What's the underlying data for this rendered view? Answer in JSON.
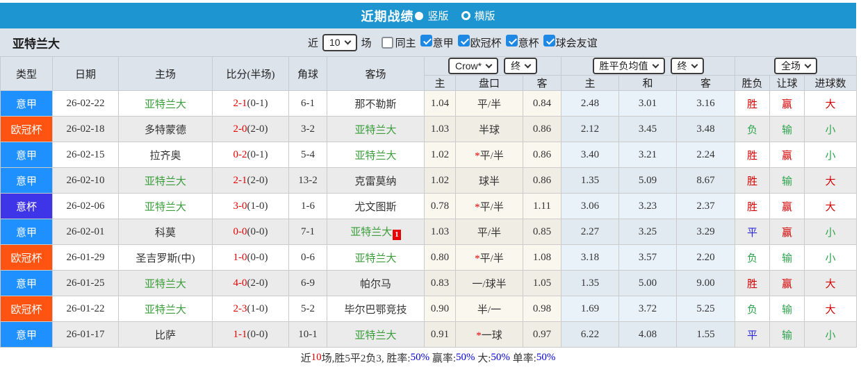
{
  "title_bar": {
    "title": "近期战绩",
    "vertical_label": "竖版",
    "horizontal_label": "横版",
    "bar_color": "#1C95D0"
  },
  "filter_bar": {
    "team": "亚特兰大",
    "near_label": "近",
    "matches_value": "10",
    "matches_label": "场",
    "same_home_label": "同主",
    "league_filters": [
      "意甲",
      "欧冠杯",
      "意杯",
      "球会友谊"
    ],
    "checkbox_color": "#1E88E5"
  },
  "table": {
    "headers": {
      "type": "类型",
      "date": "日期",
      "home": "主场",
      "score": "比分(半场)",
      "corner": "角球",
      "away": "客场"
    },
    "dropdowns": {
      "odds_source": "Crow*",
      "odds_time1": "终",
      "avg_label": "胜平负均值",
      "odds_time2": "终",
      "scope": "全场"
    },
    "sub_headers": [
      "主",
      "盘口",
      "客",
      "主",
      "和",
      "客",
      "胜负",
      "让球",
      "进球数"
    ],
    "league_colors": {
      "意甲": "#1E90FF",
      "欧冠杯": "#FF5411",
      "意杯": "#3F35E8"
    },
    "focus_team_color": "#3A9D3A",
    "rows": [
      {
        "league": "意甲",
        "date": "26-02-22",
        "home": "亚特兰大",
        "home_is_focus": true,
        "score": "2-1",
        "half": "(0-1)",
        "corner": "6-1",
        "away": "那不勒斯",
        "away_is_focus": false,
        "away_card": "",
        "odds_home": "1.04",
        "handicap": "平/半",
        "handicap_star": false,
        "odds_away": "0.84",
        "avg_home": "2.48",
        "avg_draw": "3.01",
        "avg_away": "3.16",
        "result": {
          "t": "胜",
          "c": "red"
        },
        "spread": {
          "t": "赢",
          "c": "red"
        },
        "goals": {
          "t": "大",
          "c": "red"
        }
      },
      {
        "league": "欧冠杯",
        "date": "26-02-18",
        "home": "多特蒙德",
        "home_is_focus": false,
        "score": "2-0",
        "half": "(2-0)",
        "corner": "3-2",
        "away": "亚特兰大",
        "away_is_focus": true,
        "away_card": "",
        "odds_home": "1.03",
        "handicap": "半球",
        "handicap_star": false,
        "odds_away": "0.86",
        "avg_home": "2.12",
        "avg_draw": "3.45",
        "avg_away": "3.48",
        "result": {
          "t": "负",
          "c": "green"
        },
        "spread": {
          "t": "输",
          "c": "green"
        },
        "goals": {
          "t": "小",
          "c": "green"
        }
      },
      {
        "league": "意甲",
        "date": "26-02-15",
        "home": "拉齐奥",
        "home_is_focus": false,
        "score": "0-2",
        "half": "(0-1)",
        "corner": "5-4",
        "away": "亚特兰大",
        "away_is_focus": true,
        "away_card": "",
        "odds_home": "1.02",
        "handicap": "平/半",
        "handicap_star": true,
        "odds_away": "0.86",
        "avg_home": "3.40",
        "avg_draw": "3.21",
        "avg_away": "2.24",
        "result": {
          "t": "胜",
          "c": "red"
        },
        "spread": {
          "t": "赢",
          "c": "red"
        },
        "goals": {
          "t": "小",
          "c": "green"
        }
      },
      {
        "league": "意甲",
        "date": "26-02-10",
        "home": "亚特兰大",
        "home_is_focus": true,
        "score": "2-1",
        "half": "(2-0)",
        "corner": "13-2",
        "away": "克雷莫纳",
        "away_is_focus": false,
        "away_card": "",
        "odds_home": "1.02",
        "handicap": "球半",
        "handicap_star": false,
        "odds_away": "0.86",
        "avg_home": "1.35",
        "avg_draw": "5.09",
        "avg_away": "8.67",
        "result": {
          "t": "胜",
          "c": "red"
        },
        "spread": {
          "t": "输",
          "c": "green"
        },
        "goals": {
          "t": "大",
          "c": "red"
        }
      },
      {
        "league": "意杯",
        "date": "26-02-06",
        "home": "亚特兰大",
        "home_is_focus": true,
        "score": "3-0",
        "half": "(1-0)",
        "corner": "1-6",
        "away": "尤文图斯",
        "away_is_focus": false,
        "away_card": "",
        "odds_home": "0.78",
        "handicap": "平/半",
        "handicap_star": true,
        "odds_away": "1.11",
        "avg_home": "3.06",
        "avg_draw": "3.23",
        "avg_away": "2.37",
        "result": {
          "t": "胜",
          "c": "red"
        },
        "spread": {
          "t": "赢",
          "c": "red"
        },
        "goals": {
          "t": "大",
          "c": "red"
        }
      },
      {
        "league": "意甲",
        "date": "26-02-01",
        "home": "科莫",
        "home_is_focus": false,
        "score": "0-0",
        "half": "(0-0)",
        "corner": "7-1",
        "away": "亚特兰大",
        "away_is_focus": true,
        "away_card": "1",
        "odds_home": "1.03",
        "handicap": "平/半",
        "handicap_star": false,
        "odds_away": "0.85",
        "avg_home": "2.27",
        "avg_draw": "3.25",
        "avg_away": "3.29",
        "result": {
          "t": "平",
          "c": "blue"
        },
        "spread": {
          "t": "赢",
          "c": "red"
        },
        "goals": {
          "t": "小",
          "c": "green"
        }
      },
      {
        "league": "欧冠杯",
        "date": "26-01-29",
        "home": "圣吉罗斯(中)",
        "home_is_focus": false,
        "score": "1-0",
        "half": "(0-0)",
        "corner": "0-6",
        "away": "亚特兰大",
        "away_is_focus": true,
        "away_card": "",
        "odds_home": "0.80",
        "handicap": "平/半",
        "handicap_star": true,
        "odds_away": "1.08",
        "avg_home": "3.18",
        "avg_draw": "3.57",
        "avg_away": "2.20",
        "result": {
          "t": "负",
          "c": "green"
        },
        "spread": {
          "t": "输",
          "c": "green"
        },
        "goals": {
          "t": "小",
          "c": "green"
        }
      },
      {
        "league": "意甲",
        "date": "26-01-25",
        "home": "亚特兰大",
        "home_is_focus": true,
        "score": "4-0",
        "half": "(2-0)",
        "corner": "6-9",
        "away": "帕尔马",
        "away_is_focus": false,
        "away_card": "",
        "odds_home": "0.83",
        "handicap": "一/球半",
        "handicap_star": false,
        "odds_away": "1.05",
        "avg_home": "1.35",
        "avg_draw": "5.00",
        "avg_away": "9.00",
        "result": {
          "t": "胜",
          "c": "red"
        },
        "spread": {
          "t": "赢",
          "c": "red"
        },
        "goals": {
          "t": "大",
          "c": "red"
        }
      },
      {
        "league": "欧冠杯",
        "date": "26-01-22",
        "home": "亚特兰大",
        "home_is_focus": true,
        "score": "2-3",
        "half": "(1-0)",
        "corner": "5-2",
        "away": "毕尔巴鄂竞技",
        "away_is_focus": false,
        "away_card": "",
        "odds_home": "0.90",
        "handicap": "半/一",
        "handicap_star": false,
        "odds_away": "0.98",
        "avg_home": "1.69",
        "avg_draw": "3.72",
        "avg_away": "5.25",
        "result": {
          "t": "负",
          "c": "green"
        },
        "spread": {
          "t": "输",
          "c": "green"
        },
        "goals": {
          "t": "大",
          "c": "red"
        }
      },
      {
        "league": "意甲",
        "date": "26-01-17",
        "home": "比萨",
        "home_is_focus": false,
        "score": "1-1",
        "half": "(0-0)",
        "corner": "10-1",
        "away": "亚特兰大",
        "away_is_focus": true,
        "away_card": "",
        "odds_home": "0.91",
        "handicap": "一球",
        "handicap_star": true,
        "odds_away": "0.97",
        "avg_home": "6.22",
        "avg_draw": "4.08",
        "avg_away": "1.55",
        "result": {
          "t": "平",
          "c": "blue"
        },
        "spread": {
          "t": "输",
          "c": "green"
        },
        "goals": {
          "t": "小",
          "c": "green"
        }
      }
    ]
  },
  "footer": {
    "segments": [
      {
        "t": "近",
        "c": "dark"
      },
      {
        "t": "10",
        "c": "red"
      },
      {
        "t": "场,胜5平2负3, 胜率:",
        "c": "dark"
      },
      {
        "t": "50%",
        "c": "blue"
      },
      {
        "t": " 赢率:",
        "c": "dark"
      },
      {
        "t": "50%",
        "c": "blue"
      },
      {
        "t": " 大:",
        "c": "dark"
      },
      {
        "t": "50%",
        "c": "blue"
      },
      {
        "t": " 单率:",
        "c": "dark"
      },
      {
        "t": "50%",
        "c": "blue"
      }
    ]
  }
}
